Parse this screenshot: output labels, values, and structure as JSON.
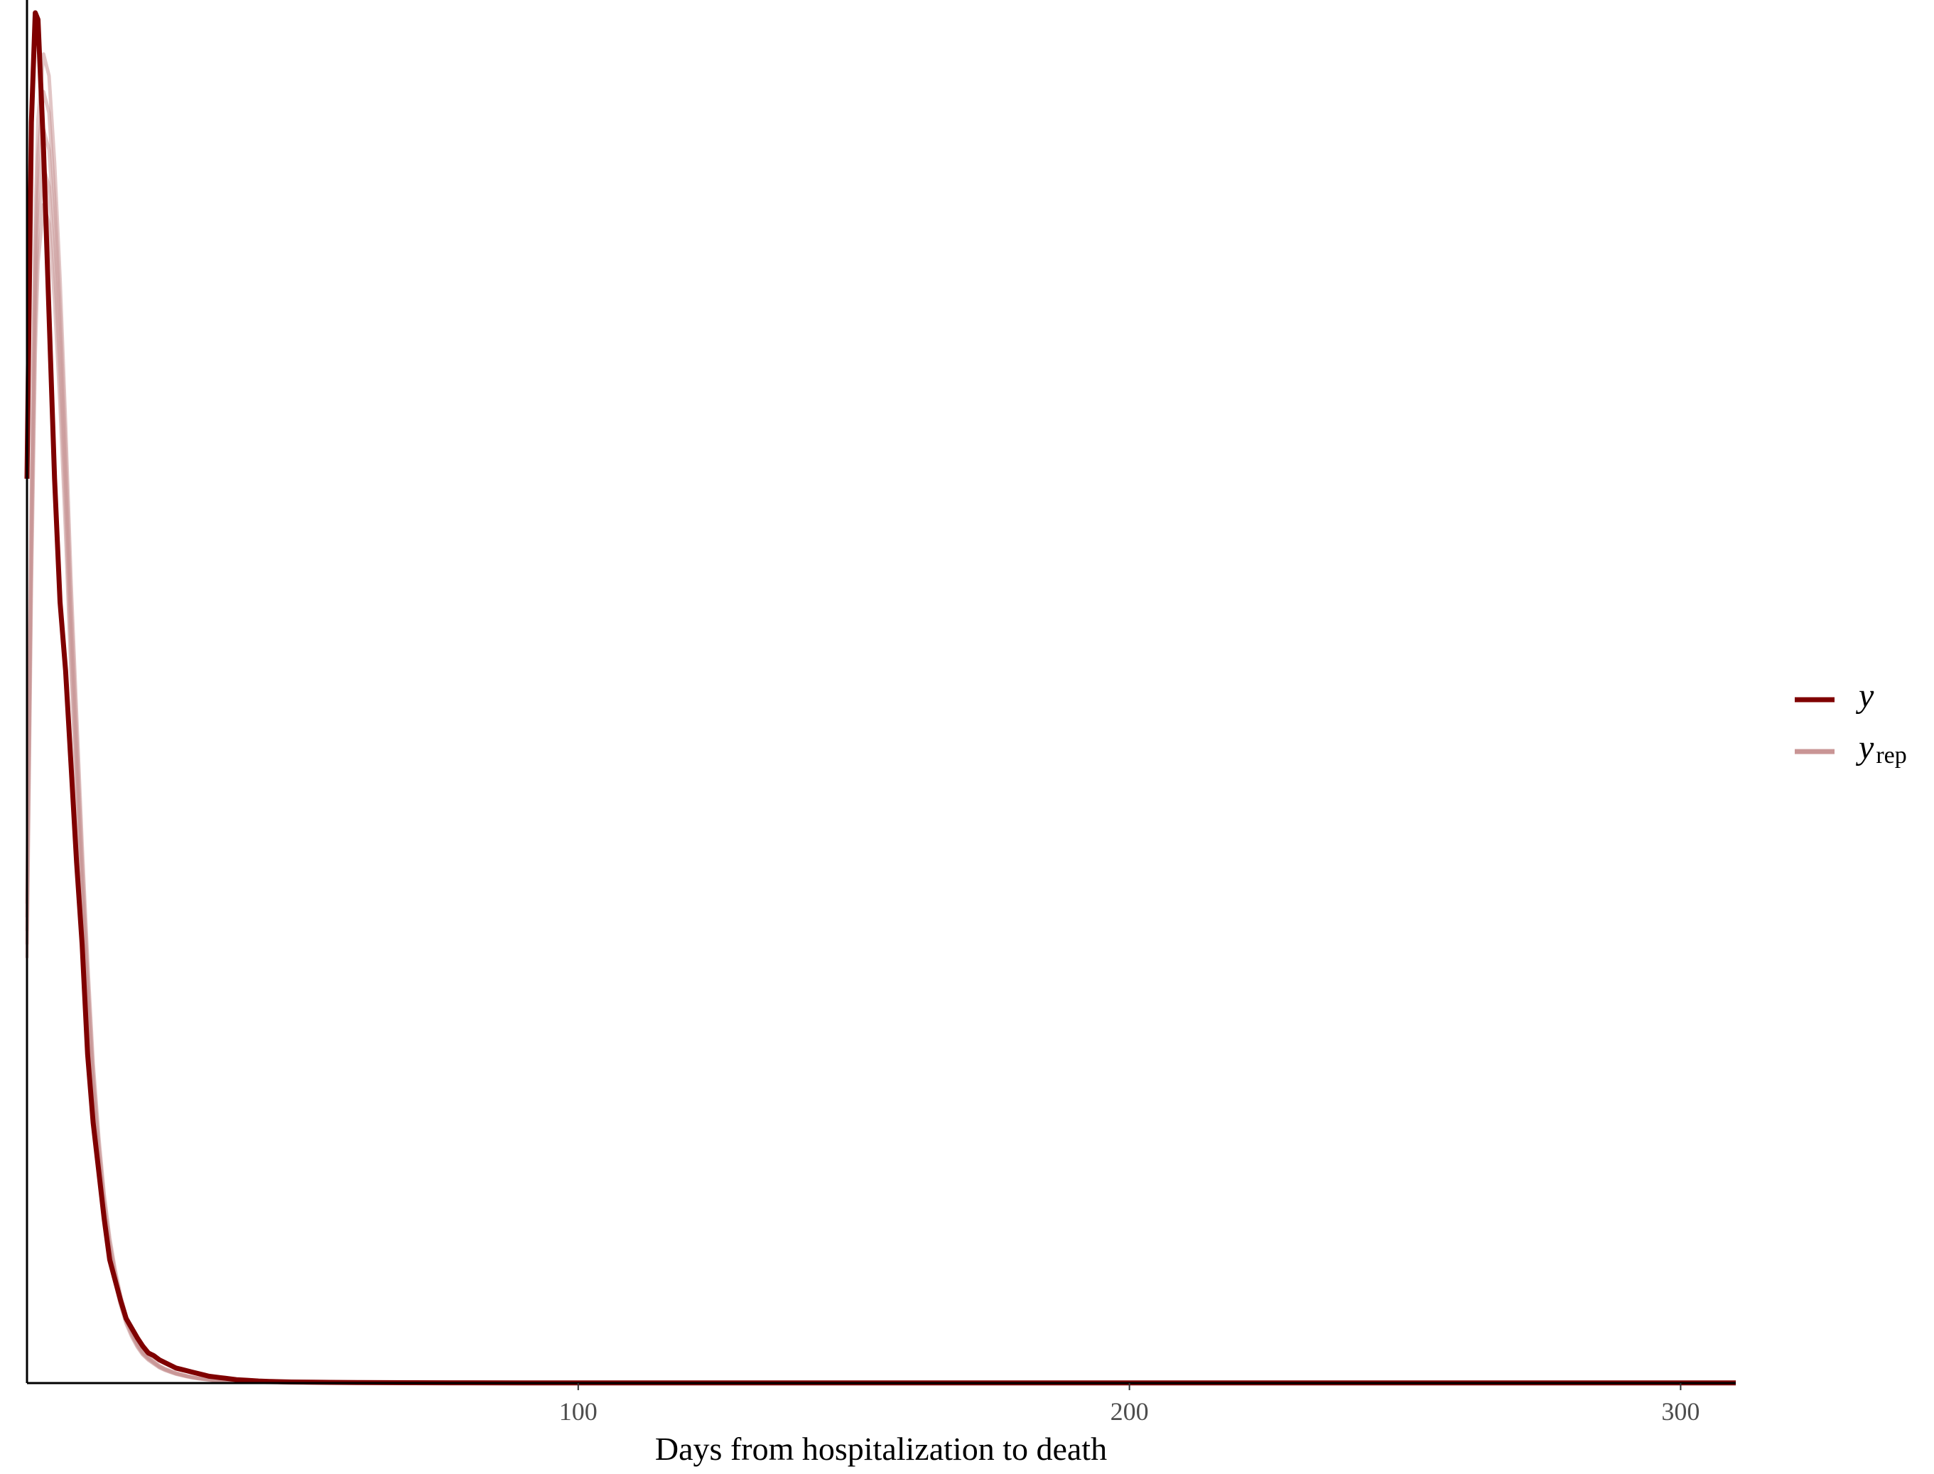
{
  "chart_data": {
    "type": "line",
    "title": "",
    "xlabel": "Days from hospitalization to death",
    "ylabel": "",
    "xlim": [
      0,
      310
    ],
    "ylim": [
      0,
      1
    ],
    "x_ticks": [
      100,
      200,
      300
    ],
    "grid": false,
    "legend_position": "right",
    "colors": {
      "y": "#7f0000",
      "yrep": "#c99595"
    },
    "series": [
      {
        "name": "y",
        "x": [
          0,
          0.8,
          1.5,
          2,
          3,
          4,
          5,
          6,
          7,
          8,
          9,
          10,
          11,
          12,
          13,
          14,
          15,
          16,
          17,
          18,
          19,
          20,
          21,
          22,
          23,
          24,
          25,
          26,
          27,
          28,
          29,
          30,
          31,
          32,
          33,
          34,
          35,
          36,
          37,
          38,
          40,
          42,
          44,
          46,
          48,
          50,
          52,
          55,
          60,
          65,
          70,
          80,
          90,
          100,
          120,
          150,
          200,
          250,
          300,
          310
        ],
        "y": [
          0.66,
          0.92,
          1.0,
          0.995,
          0.9,
          0.78,
          0.66,
          0.57,
          0.52,
          0.45,
          0.38,
          0.32,
          0.24,
          0.19,
          0.155,
          0.12,
          0.09,
          0.075,
          0.06,
          0.047,
          0.04,
          0.033,
          0.027,
          0.022,
          0.02,
          0.017,
          0.015,
          0.013,
          0.011,
          0.01,
          0.009,
          0.008,
          0.007,
          0.006,
          0.005,
          0.0045,
          0.004,
          0.0035,
          0.003,
          0.0025,
          0.002,
          0.0015,
          0.0012,
          0.001,
          0.0008,
          0.0007,
          0.0006,
          0.0005,
          0.0004,
          0.0003,
          0.00025,
          0.0002,
          0.00015,
          0.0001,
          0.0001,
          0.0001,
          0.0001,
          0.0001,
          0.0001,
          0.0001
        ]
      },
      {
        "name": "yrep",
        "x": [
          0,
          0.8,
          1.5,
          2,
          3,
          4,
          5,
          6,
          7,
          8,
          9,
          10,
          11,
          12,
          13,
          14,
          15,
          16,
          17,
          18,
          19,
          20,
          21,
          22,
          23,
          24,
          25,
          26,
          27,
          28,
          29,
          30,
          31,
          32,
          33,
          34,
          35,
          36,
          37,
          38,
          40,
          42,
          44,
          46,
          48,
          50,
          52,
          55,
          60,
          65,
          70,
          80,
          90,
          100,
          120,
          150,
          200,
          250,
          300,
          310
        ],
        "y": [
          0.33,
          0.62,
          0.8,
          0.87,
          0.915,
          0.9,
          0.84,
          0.76,
          0.66,
          0.55,
          0.46,
          0.37,
          0.29,
          0.22,
          0.17,
          0.13,
          0.1,
          0.078,
          0.06,
          0.046,
          0.036,
          0.028,
          0.022,
          0.018,
          0.015,
          0.012,
          0.01,
          0.0085,
          0.007,
          0.006,
          0.005,
          0.0042,
          0.0035,
          0.003,
          0.0025,
          0.002,
          0.0017,
          0.0014,
          0.0012,
          0.001,
          0.0008,
          0.0006,
          0.0005,
          0.0004,
          0.0003,
          0.00025,
          0.0002,
          0.00015,
          0.0001,
          0.0001,
          0.0001,
          0.0001,
          0.0001,
          0.0001,
          0.0001,
          0.0001,
          0.0001,
          0.0001,
          0.0001,
          0.0001
        ]
      }
    ]
  },
  "legend": {
    "items": [
      {
        "key": "y",
        "label": "y",
        "subscript": ""
      },
      {
        "key": "yrep",
        "label": "y",
        "subscript": "rep"
      }
    ]
  }
}
